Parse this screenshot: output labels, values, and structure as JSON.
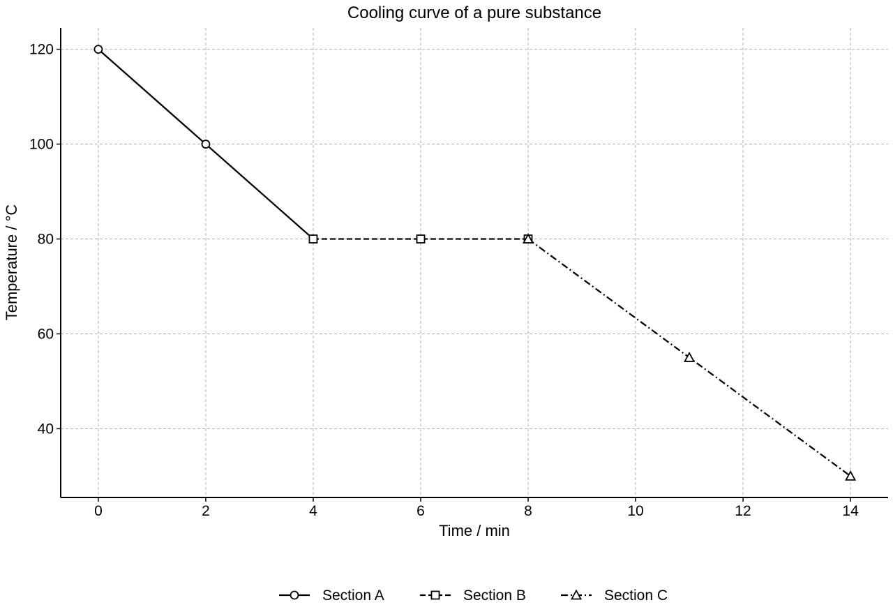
{
  "chart_data": {
    "type": "line",
    "title": "Cooling curve of a pure substance",
    "xlabel": "Time / min",
    "ylabel": "Temperature / °C",
    "xlim": [
      -0.7,
      14.7
    ],
    "ylim": [
      25.5,
      124.5
    ],
    "xticks": [
      0,
      2,
      4,
      6,
      8,
      10,
      12,
      14
    ],
    "yticks": [
      40,
      60,
      80,
      100,
      120
    ],
    "grid": true,
    "legend_position": "bottom-center",
    "series": [
      {
        "name": "Section A",
        "x": [
          0,
          2,
          4
        ],
        "y": [
          120,
          100,
          80
        ],
        "line_style": "solid",
        "marker": "circle",
        "color": "#000000"
      },
      {
        "name": "Section B",
        "x": [
          4,
          6,
          8
        ],
        "y": [
          80,
          80,
          80
        ],
        "line_style": "dashed",
        "marker": "square",
        "color": "#000000"
      },
      {
        "name": "Section C",
        "x": [
          8,
          11,
          14
        ],
        "y": [
          80,
          55,
          30
        ],
        "line_style": "dashdot",
        "marker": "triangle",
        "color": "#000000"
      }
    ]
  }
}
